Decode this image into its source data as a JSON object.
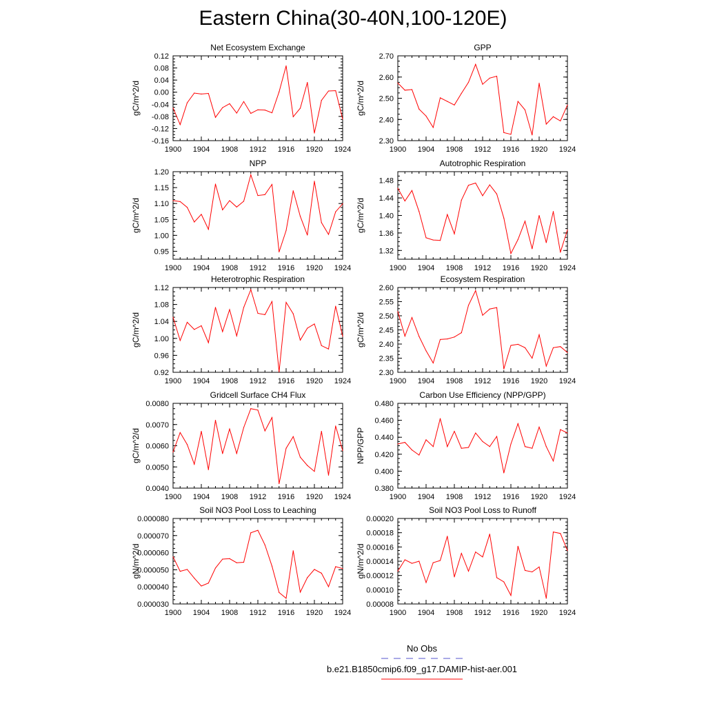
{
  "title": "Eastern China(30-40N,100-120E)",
  "colors": {
    "model": "#ff0000",
    "obs": "#5555cc",
    "axis": "#000000"
  },
  "legend": {
    "obs_label": "No Obs",
    "model_label": "b.e21.B1850cmip6.f09_g17.DAMIP-hist-aer.001"
  },
  "chart_data": [
    {
      "type": "line",
      "title": "Net Ecosystem Exchange",
      "xlabel": "",
      "ylabel": "gC/m^2/d",
      "xlim": [
        1900,
        1924
      ],
      "ylim": [
        -0.16,
        0.12
      ],
      "yticks": [
        "-0.16",
        "-0.12",
        "-0.08",
        "-0.04",
        "0.00",
        "0.04",
        "0.08",
        "0.12"
      ],
      "xticks": [
        "1900",
        "1904",
        "1908",
        "1912",
        "1916",
        "1920",
        "1924"
      ],
      "x": [
        1900,
        1901,
        1902,
        1903,
        1904,
        1905,
        1906,
        1907,
        1908,
        1909,
        1910,
        1911,
        1912,
        1913,
        1914,
        1915,
        1916,
        1917,
        1918,
        1919,
        1920,
        1921,
        1922,
        1923,
        1924
      ],
      "series": [
        {
          "values": [
            -0.052,
            -0.107,
            -0.035,
            -0.003,
            -0.006,
            -0.004,
            -0.083,
            -0.051,
            -0.038,
            -0.069,
            -0.031,
            -0.07,
            -0.058,
            -0.059,
            -0.068,
            0.001,
            0.087,
            -0.081,
            -0.053,
            0.032,
            -0.135,
            -0.027,
            0.004,
            0.005,
            -0.089
          ]
        }
      ]
    },
    {
      "type": "line",
      "title": "GPP",
      "xlabel": "",
      "ylabel": "gC/m^2/d",
      "xlim": [
        1900,
        1924
      ],
      "ylim": [
        2.3,
        2.7
      ],
      "yticks": [
        "2.30",
        "2.40",
        "2.50",
        "2.60",
        "2.70"
      ],
      "xticks": [
        "1900",
        "1904",
        "1908",
        "1912",
        "1916",
        "1920",
        "1924"
      ],
      "x": [
        1900,
        1901,
        1902,
        1903,
        1904,
        1905,
        1906,
        1907,
        1908,
        1909,
        1910,
        1911,
        1912,
        1913,
        1914,
        1915,
        1916,
        1917,
        1918,
        1919,
        1920,
        1921,
        1922,
        1923,
        1924
      ],
      "series": [
        {
          "values": [
            2.572,
            2.538,
            2.541,
            2.449,
            2.416,
            2.362,
            2.502,
            2.485,
            2.468,
            2.523,
            2.575,
            2.66,
            2.566,
            2.595,
            2.604,
            2.338,
            2.33,
            2.485,
            2.445,
            2.327,
            2.571,
            2.378,
            2.413,
            2.393,
            2.468
          ]
        }
      ]
    },
    {
      "type": "line",
      "title": "NPP",
      "xlabel": "",
      "ylabel": "gC/m^2/d",
      "xlim": [
        1900,
        1924
      ],
      "ylim": [
        0.925,
        1.2
      ],
      "yticks": [
        "0.95",
        "1.00",
        "1.05",
        "1.10",
        "1.15",
        "1.20"
      ],
      "xticks": [
        "1900",
        "1904",
        "1908",
        "1912",
        "1916",
        "1920",
        "1924"
      ],
      "x": [
        1900,
        1901,
        1902,
        1903,
        1904,
        1905,
        1906,
        1907,
        1908,
        1909,
        1910,
        1911,
        1912,
        1913,
        1914,
        1915,
        1916,
        1917,
        1918,
        1919,
        1920,
        1921,
        1922,
        1923,
        1924
      ],
      "series": [
        {
          "values": [
            1.109,
            1.106,
            1.088,
            1.042,
            1.066,
            1.019,
            1.161,
            1.08,
            1.109,
            1.089,
            1.107,
            1.19,
            1.125,
            1.128,
            1.16,
            0.948,
            1.015,
            1.14,
            1.06,
            1.001,
            1.17,
            1.04,
            1.003,
            1.074,
            1.099
          ]
        }
      ]
    },
    {
      "type": "line",
      "title": "Autotrophic Respiration",
      "xlabel": "",
      "ylabel": "gC/m^2/d",
      "xlim": [
        1900,
        1924
      ],
      "ylim": [
        1.3,
        1.5
      ],
      "yticks": [
        "1.32",
        "1.36",
        "1.40",
        "1.44",
        "1.48"
      ],
      "xticks": [
        "1900",
        "1904",
        "1908",
        "1912",
        "1916",
        "1920",
        "1924"
      ],
      "x": [
        1900,
        1901,
        1902,
        1903,
        1904,
        1905,
        1906,
        1907,
        1908,
        1909,
        1910,
        1911,
        1912,
        1913,
        1914,
        1915,
        1916,
        1917,
        1918,
        1919,
        1920,
        1921,
        1922,
        1923,
        1924
      ],
      "series": [
        {
          "values": [
            1.462,
            1.433,
            1.457,
            1.409,
            1.349,
            1.344,
            1.343,
            1.402,
            1.358,
            1.435,
            1.469,
            1.474,
            1.445,
            1.47,
            1.449,
            1.394,
            1.313,
            1.345,
            1.387,
            1.324,
            1.4,
            1.338,
            1.409,
            1.316,
            1.367
          ]
        }
      ]
    },
    {
      "type": "line",
      "title": "Heterotrophic Respiration",
      "xlabel": "",
      "ylabel": "gC/m^2/d",
      "xlim": [
        1900,
        1924
      ],
      "ylim": [
        0.92,
        1.12
      ],
      "yticks": [
        "0.92",
        "0.96",
        "1.00",
        "1.04",
        "1.08",
        "1.12"
      ],
      "xticks": [
        "1900",
        "1904",
        "1908",
        "1912",
        "1916",
        "1920",
        "1924"
      ],
      "x": [
        1900,
        1901,
        1902,
        1903,
        1904,
        1905,
        1906,
        1907,
        1908,
        1909,
        1910,
        1911,
        1912,
        1913,
        1914,
        1915,
        1916,
        1917,
        1918,
        1919,
        1920,
        1921,
        1922,
        1923,
        1924
      ],
      "series": [
        {
          "values": [
            1.05,
            0.995,
            1.038,
            1.021,
            1.03,
            0.99,
            1.073,
            1.016,
            1.068,
            1.006,
            1.073,
            1.115,
            1.059,
            1.056,
            1.087,
            0.921,
            1.085,
            1.058,
            0.996,
            1.024,
            1.034,
            0.983,
            0.975,
            1.076,
            1.005
          ]
        }
      ]
    },
    {
      "type": "line",
      "title": "Ecosystem Respiration",
      "xlabel": "",
      "ylabel": "gC/m^2/d",
      "xlim": [
        1900,
        1924
      ],
      "ylim": [
        2.3,
        2.6
      ],
      "yticks": [
        "2.30",
        "2.35",
        "2.40",
        "2.45",
        "2.50",
        "2.55",
        "2.60"
      ],
      "xticks": [
        "1900",
        "1904",
        "1908",
        "1912",
        "1916",
        "1920",
        "1924"
      ],
      "x": [
        1900,
        1901,
        1902,
        1903,
        1904,
        1905,
        1906,
        1907,
        1908,
        1909,
        1910,
        1911,
        1912,
        1913,
        1914,
        1915,
        1916,
        1917,
        1918,
        1919,
        1920,
        1921,
        1922,
        1923,
        1924
      ],
      "series": [
        {
          "values": [
            2.515,
            2.428,
            2.494,
            2.427,
            2.376,
            2.333,
            2.416,
            2.418,
            2.425,
            2.44,
            2.537,
            2.589,
            2.502,
            2.524,
            2.529,
            2.312,
            2.395,
            2.399,
            2.387,
            2.35,
            2.433,
            2.322,
            2.387,
            2.391,
            2.37
          ]
        }
      ]
    },
    {
      "type": "line",
      "title": "Gridcell Surface CH4 Flux",
      "xlabel": "",
      "ylabel": "gC/m^2/d",
      "xlim": [
        1900,
        1924
      ],
      "ylim": [
        0.004,
        0.008
      ],
      "yticks": [
        "0.0040",
        "0.0050",
        "0.0060",
        "0.0070",
        "0.0080"
      ],
      "xticks": [
        "1900",
        "1904",
        "1908",
        "1912",
        "1916",
        "1920",
        "1924"
      ],
      "x": [
        1900,
        1901,
        1902,
        1903,
        1904,
        1905,
        1906,
        1907,
        1908,
        1909,
        1910,
        1911,
        1912,
        1913,
        1914,
        1915,
        1916,
        1917,
        1918,
        1919,
        1920,
        1921,
        1922,
        1923,
        1924
      ],
      "series": [
        {
          "values": [
            0.0057,
            0.00662,
            0.00606,
            0.00513,
            0.00668,
            0.00487,
            0.0072,
            0.00563,
            0.00679,
            0.00564,
            0.00686,
            0.00775,
            0.00768,
            0.0067,
            0.00733,
            0.00421,
            0.00588,
            0.00643,
            0.00546,
            0.00507,
            0.00479,
            0.00668,
            0.00461,
            0.00693,
            0.00577
          ]
        }
      ]
    },
    {
      "type": "line",
      "title": "Carbon Use Efficiency (NPP/GPP)",
      "xlabel": "",
      "ylabel": "NPP/GPP",
      "xlim": [
        1900,
        1924
      ],
      "ylim": [
        0.38,
        0.48
      ],
      "yticks": [
        "0.380",
        "0.400",
        "0.420",
        "0.440",
        "0.460",
        "0.480"
      ],
      "xticks": [
        "1900",
        "1904",
        "1908",
        "1912",
        "1916",
        "1920",
        "1924"
      ],
      "x": [
        1900,
        1901,
        1902,
        1903,
        1904,
        1905,
        1906,
        1907,
        1908,
        1909,
        1910,
        1911,
        1912,
        1913,
        1914,
        1915,
        1916,
        1917,
        1918,
        1919,
        1920,
        1921,
        1922,
        1923,
        1924
      ],
      "series": [
        {
          "values": [
            0.432,
            0.434,
            0.425,
            0.419,
            0.437,
            0.429,
            0.462,
            0.429,
            0.447,
            0.427,
            0.428,
            0.445,
            0.435,
            0.429,
            0.441,
            0.398,
            0.432,
            0.456,
            0.429,
            0.427,
            0.452,
            0.429,
            0.412,
            0.449,
            0.445
          ]
        }
      ]
    },
    {
      "type": "line",
      "title": "Soil NO3 Pool Loss to Leaching",
      "xlabel": "",
      "ylabel": "gN/m^2/d",
      "xlim": [
        1900,
        1924
      ],
      "ylim": [
        3e-05,
        8e-05
      ],
      "yticks": [
        "0.000030",
        "0.000040",
        "0.000050",
        "0.000060",
        "0.000070",
        "0.000080"
      ],
      "xticks": [
        "1900",
        "1904",
        "1908",
        "1912",
        "1916",
        "1920",
        "1924"
      ],
      "x": [
        1900,
        1901,
        1902,
        1903,
        1904,
        1905,
        1906,
        1907,
        1908,
        1909,
        1910,
        1911,
        1912,
        1913,
        1914,
        1915,
        1916,
        1917,
        1918,
        1919,
        1920,
        1921,
        1922,
        1923,
        1924
      ],
      "series": [
        {
          "values": [
            5.76e-05,
            4.91e-05,
            5.02e-05,
            4.51e-05,
            4.05e-05,
            4.22e-05,
            5.1e-05,
            5.62e-05,
            5.65e-05,
            5.41e-05,
            5.44e-05,
            7.16e-05,
            7.31e-05,
            6.45e-05,
            5.21e-05,
            3.67e-05,
            3.33e-05,
            6.11e-05,
            3.69e-05,
            4.54e-05,
            5.02e-05,
            4.8e-05,
            4.01e-05,
            5.18e-05,
            5.07e-05
          ]
        }
      ]
    },
    {
      "type": "line",
      "title": "Soil NO3 Pool Loss to Runoff",
      "xlabel": "",
      "ylabel": "gN/m^2/d",
      "xlim": [
        1900,
        1924
      ],
      "ylim": [
        8e-05,
        0.0002
      ],
      "yticks": [
        "0.00008",
        "0.00010",
        "0.00012",
        "0.00014",
        "0.00016",
        "0.00018",
        "0.00020"
      ],
      "xticks": [
        "1900",
        "1904",
        "1908",
        "1912",
        "1916",
        "1920",
        "1924"
      ],
      "x": [
        1900,
        1901,
        1902,
        1903,
        1904,
        1905,
        1906,
        1907,
        1908,
        1909,
        1910,
        1911,
        1912,
        1913,
        1914,
        1915,
        1916,
        1917,
        1918,
        1919,
        1920,
        1921,
        1922,
        1923,
        1924
      ],
      "series": [
        {
          "values": [
            0.000126,
            0.000142,
            0.000137,
            0.00014,
            0.00011,
            0.000138,
            0.000141,
            0.000175,
            0.000118,
            0.000151,
            0.000126,
            0.000153,
            0.000146,
            0.000178,
            0.000117,
            0.000111,
            9.2e-05,
            0.000161,
            0.000127,
            0.000125,
            0.000132,
            8.8e-05,
            0.000181,
            0.000179,
            0.000155
          ]
        }
      ]
    }
  ]
}
